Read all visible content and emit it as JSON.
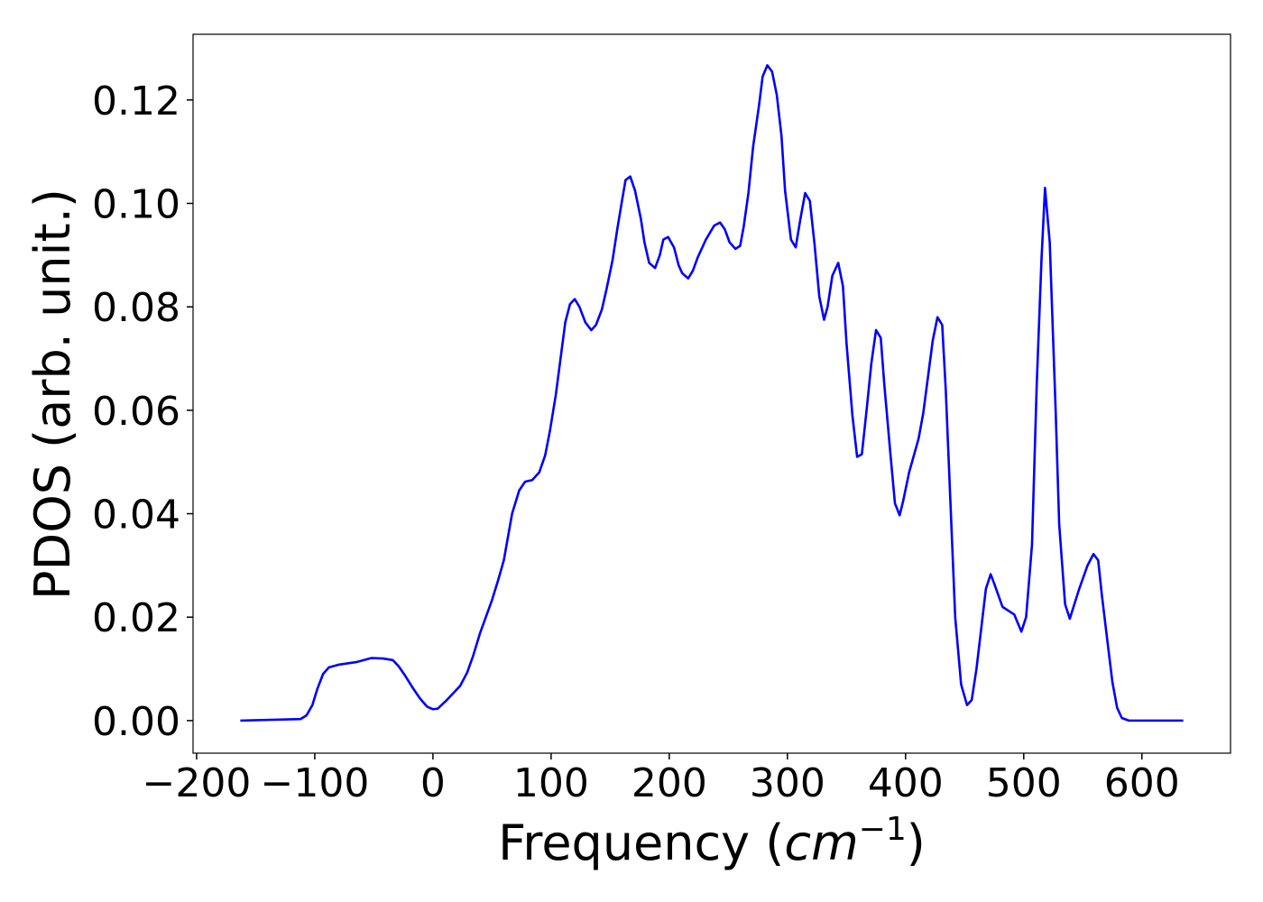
{
  "chart_data": {
    "type": "line",
    "xlabel": [
      "Frequency (",
      "cm",
      "−1",
      ")"
    ],
    "ylabel": "PDOS (arb. unit.)",
    "xlim": [
      -203,
      675
    ],
    "ylim": [
      -0.0063,
      0.1327
    ],
    "xticks": [
      {
        "value": -200,
        "label": "−200"
      },
      {
        "value": -100,
        "label": "−100"
      },
      0,
      100,
      200,
      300,
      400,
      500,
      600
    ],
    "yticks": [
      {
        "value": 0,
        "label": "0.00"
      },
      {
        "value": 0.02,
        "label": "0.02"
      },
      {
        "value": 0.04,
        "label": "0.04"
      },
      {
        "value": 0.06,
        "label": "0.06"
      },
      {
        "value": 0.08,
        "label": "0.08"
      },
      {
        "value": 0.1,
        "label": "0.10"
      },
      {
        "value": 0.12,
        "label": "0.12"
      }
    ],
    "grid": false,
    "series": [
      {
        "color": "#0000ff",
        "x": [
          -163,
          -112,
          -107,
          -102,
          -98,
          -93,
          -88,
          -80,
          -65,
          -52,
          -42,
          -34,
          -29,
          -23,
          -17,
          -11,
          -5,
          0,
          4,
          11,
          23,
          29,
          34,
          40,
          50,
          55,
          60,
          67,
          73,
          78,
          84,
          90,
          95,
          99,
          104,
          108,
          112,
          116,
          120,
          124,
          129,
          134,
          138,
          143,
          147,
          152,
          156,
          160,
          163,
          167,
          171,
          176,
          179,
          183,
          188,
          192,
          195,
          199,
          204,
          208,
          211,
          216,
          220,
          224,
          231,
          238,
          243,
          247,
          251,
          256,
          260,
          263,
          267,
          271,
          276,
          279,
          283,
          287,
          291,
          295,
          298,
          303,
          307,
          311,
          315,
          319,
          323,
          327,
          331,
          334,
          338,
          343,
          347,
          350,
          355,
          359,
          363,
          367,
          371,
          375,
          379,
          382,
          387,
          391,
          395,
          398,
          403,
          411,
          415,
          419,
          423,
          427,
          431,
          434,
          438,
          442,
          447,
          452,
          456,
          460,
          468,
          472,
          475,
          482,
          492,
          498,
          502,
          507,
          511,
          515,
          518,
          522,
          527,
          530,
          535,
          539,
          547,
          554,
          559,
          563,
          566,
          571,
          575,
          579,
          583,
          589,
          635
        ],
        "values": [
          0,
          0.0003,
          0.001,
          0.003,
          0.006,
          0.009,
          0.0103,
          0.0108,
          0.0113,
          0.0121,
          0.012,
          0.0117,
          0.0105,
          0.0085,
          0.0063,
          0.0043,
          0.0027,
          0.0022,
          0.0023,
          0.0038,
          0.0067,
          0.0093,
          0.0125,
          0.017,
          0.0233,
          0.027,
          0.031,
          0.04,
          0.0445,
          0.0462,
          0.0465,
          0.048,
          0.0513,
          0.056,
          0.063,
          0.07,
          0.077,
          0.0805,
          0.0815,
          0.08,
          0.077,
          0.0755,
          0.0765,
          0.0795,
          0.0835,
          0.089,
          0.095,
          0.1005,
          0.1045,
          0.1052,
          0.1025,
          0.097,
          0.0925,
          0.0885,
          0.0875,
          0.09,
          0.093,
          0.0935,
          0.0915,
          0.088,
          0.0865,
          0.0855,
          0.087,
          0.0895,
          0.093,
          0.0957,
          0.0963,
          0.095,
          0.0925,
          0.0912,
          0.0918,
          0.0955,
          0.102,
          0.111,
          0.119,
          0.1245,
          0.1267,
          0.1255,
          0.121,
          0.113,
          0.1025,
          0.093,
          0.0915,
          0.097,
          0.102,
          0.1005,
          0.092,
          0.082,
          0.0775,
          0.08,
          0.086,
          0.0885,
          0.084,
          0.073,
          0.059,
          0.051,
          0.0515,
          0.06,
          0.069,
          0.0755,
          0.074,
          0.065,
          0.052,
          0.042,
          0.0397,
          0.0425,
          0.048,
          0.0545,
          0.0595,
          0.0665,
          0.0735,
          0.078,
          0.0765,
          0.064,
          0.042,
          0.02,
          0.007,
          0.003,
          0.004,
          0.01,
          0.0255,
          0.0283,
          0.0265,
          0.022,
          0.0205,
          0.0172,
          0.02,
          0.034,
          0.065,
          0.089,
          0.103,
          0.0925,
          0.06,
          0.038,
          0.0225,
          0.0197,
          0.0255,
          0.03,
          0.0322,
          0.031,
          0.0245,
          0.015,
          0.0075,
          0.0025,
          0.0005,
          0,
          0
        ]
      }
    ]
  }
}
